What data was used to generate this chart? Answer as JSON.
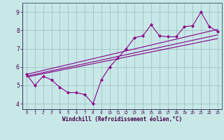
{
  "xlabel": "Windchill (Refroidissement éolien,°C)",
  "background_color": "#c8e8e8",
  "line_color": "#880088",
  "grid_color": "#99bbbb",
  "xlim": [
    -0.5,
    23.5
  ],
  "ylim": [
    3.7,
    9.5
  ],
  "xticks": [
    0,
    1,
    2,
    3,
    4,
    5,
    6,
    7,
    8,
    9,
    10,
    11,
    12,
    13,
    14,
    15,
    16,
    17,
    18,
    19,
    20,
    21,
    22,
    23
  ],
  "yticks": [
    4,
    5,
    6,
    7,
    8,
    9
  ],
  "series_x": [
    0,
    1,
    2,
    3,
    4,
    5,
    6,
    7,
    8,
    9,
    10,
    11,
    12,
    13,
    14,
    15,
    16,
    17,
    18,
    19,
    20,
    21,
    22,
    23
  ],
  "series_y": [
    5.6,
    5.0,
    5.5,
    5.3,
    4.9,
    4.6,
    4.6,
    4.5,
    4.0,
    5.3,
    6.0,
    6.5,
    7.0,
    7.6,
    7.7,
    8.3,
    7.7,
    7.65,
    7.65,
    8.2,
    8.25,
    9.0,
    8.2,
    7.95
  ],
  "reg_lines": [
    {
      "x0": 0,
      "y0": 5.45,
      "x1": 23,
      "y1": 7.55
    },
    {
      "x0": 0,
      "y0": 5.5,
      "x1": 23,
      "y1": 7.75
    },
    {
      "x0": 0,
      "y0": 5.6,
      "x1": 23,
      "y1": 8.05
    }
  ]
}
